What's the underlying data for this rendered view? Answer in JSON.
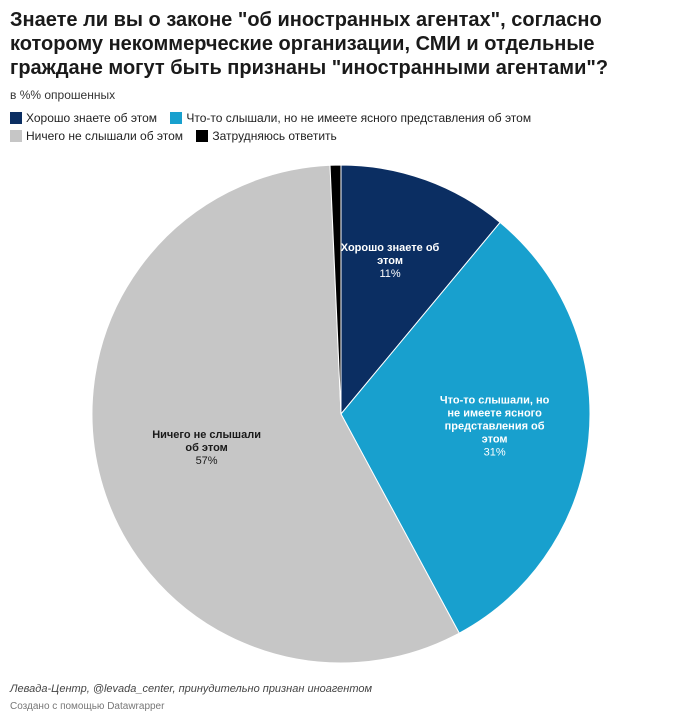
{
  "chart_data": {
    "type": "pie",
    "title": "Знаете ли вы о законе \"об иностранных агентах\", согласно которому некоммерческие организации, СМИ и отдельные граждане могут быть признаны \"иностранными агентами\"?",
    "subtitle": "в %% опрошенных",
    "legend_position": "top-left",
    "slices": [
      {
        "name": "Хорошо знаете об этом",
        "label_lines": [
          "Хорошо знаете об",
          "этом"
        ],
        "value": 11,
        "value_label": "11%",
        "color": "#0b2e62",
        "label_color": "#ffffff"
      },
      {
        "name": "Что-то слышали, но не имеете ясного представления об этом",
        "label_lines": [
          "Что-то слышали, но",
          "не имеете ясного",
          "представления об",
          "этом"
        ],
        "value": 31,
        "value_label": "31%",
        "color": "#18a0ce",
        "label_color": "#ffffff"
      },
      {
        "name": "Ничего не слышали об этом",
        "label_lines": [
          "Ничего не слышали",
          "об этом"
        ],
        "value": 57,
        "value_label": "57%",
        "color": "#c6c6c6",
        "label_color": "#1a1a1a"
      },
      {
        "name": "Затрудняюсь ответить",
        "label_lines": [],
        "value": 0.7,
        "value_label": "",
        "color": "#000000",
        "label_color": "#ffffff"
      }
    ]
  },
  "footer": {
    "source": "Левада-Центр, @levada_center, принудительно признан иноагентом",
    "credit": "Создано с помощью Datawrapper"
  }
}
